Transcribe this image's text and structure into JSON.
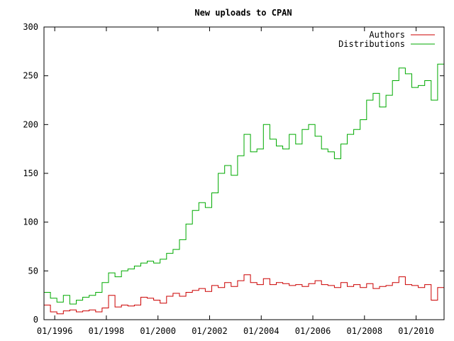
{
  "chart_data": {
    "type": "line",
    "title": "New uploads to CPAN",
    "xlabel": "",
    "ylabel": "",
    "ylim": [
      0,
      300
    ],
    "xlim": [
      "1995-08",
      "2011-02"
    ],
    "grid": false,
    "legend_position": "top-right",
    "line_style": "step",
    "y_ticks": [
      0,
      50,
      100,
      150,
      200,
      250,
      300
    ],
    "x_ticks": [
      "01/1996",
      "01/1998",
      "01/2000",
      "01/2002",
      "01/2004",
      "01/2006",
      "01/2008",
      "01/2010"
    ],
    "series": [
      {
        "name": "Authors",
        "color": "#cc0000",
        "values": [
          {
            "x": "1995-08",
            "y": 15
          },
          {
            "x": "1995-11",
            "y": 8
          },
          {
            "x": "1996-02",
            "y": 6
          },
          {
            "x": "1996-05",
            "y": 9
          },
          {
            "x": "1996-08",
            "y": 10
          },
          {
            "x": "1996-11",
            "y": 8
          },
          {
            "x": "1997-02",
            "y": 9
          },
          {
            "x": "1997-05",
            "y": 10
          },
          {
            "x": "1997-08",
            "y": 8
          },
          {
            "x": "1997-11",
            "y": 12
          },
          {
            "x": "1998-02",
            "y": 25
          },
          {
            "x": "1998-05",
            "y": 13
          },
          {
            "x": "1998-08",
            "y": 15
          },
          {
            "x": "1998-11",
            "y": 14
          },
          {
            "x": "1999-02",
            "y": 15
          },
          {
            "x": "1999-05",
            "y": 23
          },
          {
            "x": "1999-08",
            "y": 22
          },
          {
            "x": "1999-11",
            "y": 20
          },
          {
            "x": "2000-02",
            "y": 17
          },
          {
            "x": "2000-05",
            "y": 24
          },
          {
            "x": "2000-08",
            "y": 27
          },
          {
            "x": "2000-11",
            "y": 24
          },
          {
            "x": "2001-02",
            "y": 28
          },
          {
            "x": "2001-05",
            "y": 30
          },
          {
            "x": "2001-08",
            "y": 32
          },
          {
            "x": "2001-11",
            "y": 29
          },
          {
            "x": "2002-02",
            "y": 35
          },
          {
            "x": "2002-05",
            "y": 33
          },
          {
            "x": "2002-08",
            "y": 38
          },
          {
            "x": "2002-11",
            "y": 34
          },
          {
            "x": "2003-02",
            "y": 40
          },
          {
            "x": "2003-05",
            "y": 46
          },
          {
            "x": "2003-08",
            "y": 38
          },
          {
            "x": "2003-11",
            "y": 36
          },
          {
            "x": "2004-02",
            "y": 42
          },
          {
            "x": "2004-05",
            "y": 36
          },
          {
            "x": "2004-08",
            "y": 38
          },
          {
            "x": "2004-11",
            "y": 37
          },
          {
            "x": "2005-02",
            "y": 35
          },
          {
            "x": "2005-05",
            "y": 36
          },
          {
            "x": "2005-08",
            "y": 34
          },
          {
            "x": "2005-11",
            "y": 37
          },
          {
            "x": "2006-02",
            "y": 40
          },
          {
            "x": "2006-05",
            "y": 36
          },
          {
            "x": "2006-08",
            "y": 35
          },
          {
            "x": "2006-11",
            "y": 33
          },
          {
            "x": "2007-02",
            "y": 38
          },
          {
            "x": "2007-05",
            "y": 34
          },
          {
            "x": "2007-08",
            "y": 36
          },
          {
            "x": "2007-11",
            "y": 33
          },
          {
            "x": "2008-02",
            "y": 37
          },
          {
            "x": "2008-05",
            "y": 32
          },
          {
            "x": "2008-08",
            "y": 34
          },
          {
            "x": "2008-11",
            "y": 35
          },
          {
            "x": "2009-02",
            "y": 38
          },
          {
            "x": "2009-05",
            "y": 44
          },
          {
            "x": "2009-08",
            "y": 36
          },
          {
            "x": "2009-11",
            "y": 35
          },
          {
            "x": "2010-02",
            "y": 33
          },
          {
            "x": "2010-05",
            "y": 36
          },
          {
            "x": "2010-08",
            "y": 20
          },
          {
            "x": "2010-11",
            "y": 33
          },
          {
            "x": "2011-02",
            "y": 30
          }
        ]
      },
      {
        "name": "Distributions",
        "color": "#00aa00",
        "values": [
          {
            "x": "1995-08",
            "y": 28
          },
          {
            "x": "1995-11",
            "y": 22
          },
          {
            "x": "1996-02",
            "y": 18
          },
          {
            "x": "1996-05",
            "y": 25
          },
          {
            "x": "1996-08",
            "y": 16
          },
          {
            "x": "1996-11",
            "y": 20
          },
          {
            "x": "1997-02",
            "y": 23
          },
          {
            "x": "1997-05",
            "y": 25
          },
          {
            "x": "1997-08",
            "y": 28
          },
          {
            "x": "1997-11",
            "y": 38
          },
          {
            "x": "1998-02",
            "y": 48
          },
          {
            "x": "1998-05",
            "y": 44
          },
          {
            "x": "1998-08",
            "y": 50
          },
          {
            "x": "1998-11",
            "y": 52
          },
          {
            "x": "1999-02",
            "y": 55
          },
          {
            "x": "1999-05",
            "y": 58
          },
          {
            "x": "1999-08",
            "y": 60
          },
          {
            "x": "1999-11",
            "y": 58
          },
          {
            "x": "2000-02",
            "y": 62
          },
          {
            "x": "2000-05",
            "y": 68
          },
          {
            "x": "2000-08",
            "y": 72
          },
          {
            "x": "2000-11",
            "y": 82
          },
          {
            "x": "2001-02",
            "y": 98
          },
          {
            "x": "2001-05",
            "y": 112
          },
          {
            "x": "2001-08",
            "y": 120
          },
          {
            "x": "2001-11",
            "y": 115
          },
          {
            "x": "2002-02",
            "y": 130
          },
          {
            "x": "2002-05",
            "y": 150
          },
          {
            "x": "2002-08",
            "y": 158
          },
          {
            "x": "2002-11",
            "y": 148
          },
          {
            "x": "2003-02",
            "y": 168
          },
          {
            "x": "2003-05",
            "y": 190
          },
          {
            "x": "2003-08",
            "y": 172
          },
          {
            "x": "2003-11",
            "y": 175
          },
          {
            "x": "2004-02",
            "y": 200
          },
          {
            "x": "2004-05",
            "y": 185
          },
          {
            "x": "2004-08",
            "y": 178
          },
          {
            "x": "2004-11",
            "y": 175
          },
          {
            "x": "2005-02",
            "y": 190
          },
          {
            "x": "2005-05",
            "y": 180
          },
          {
            "x": "2005-08",
            "y": 195
          },
          {
            "x": "2005-11",
            "y": 200
          },
          {
            "x": "2006-02",
            "y": 188
          },
          {
            "x": "2006-05",
            "y": 175
          },
          {
            "x": "2006-08",
            "y": 172
          },
          {
            "x": "2006-11",
            "y": 165
          },
          {
            "x": "2007-02",
            "y": 180
          },
          {
            "x": "2007-05",
            "y": 190
          },
          {
            "x": "2007-08",
            "y": 195
          },
          {
            "x": "2007-11",
            "y": 205
          },
          {
            "x": "2008-02",
            "y": 225
          },
          {
            "x": "2008-05",
            "y": 232
          },
          {
            "x": "2008-08",
            "y": 218
          },
          {
            "x": "2008-11",
            "y": 230
          },
          {
            "x": "2009-02",
            "y": 245
          },
          {
            "x": "2009-05",
            "y": 258
          },
          {
            "x": "2009-08",
            "y": 252
          },
          {
            "x": "2009-11",
            "y": 238
          },
          {
            "x": "2010-02",
            "y": 240
          },
          {
            "x": "2010-05",
            "y": 245
          },
          {
            "x": "2010-08",
            "y": 225
          },
          {
            "x": "2010-11",
            "y": 262
          },
          {
            "x": "2011-02",
            "y": 285
          }
        ]
      }
    ]
  }
}
